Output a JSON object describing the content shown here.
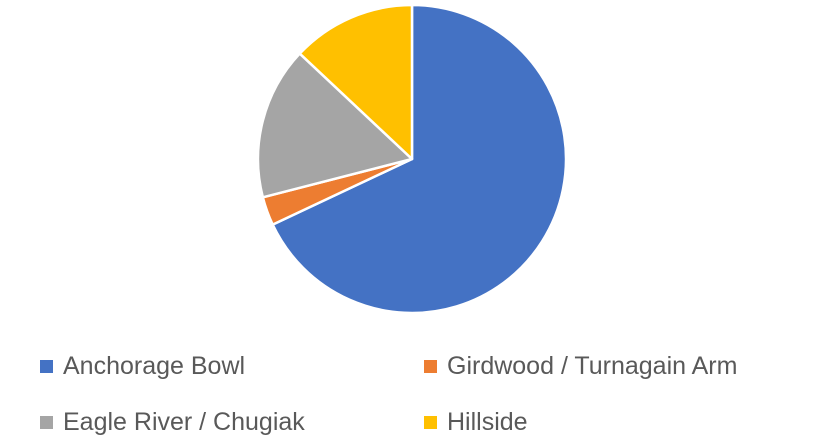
{
  "chart_data": {
    "type": "pie",
    "title": "",
    "categories": [
      "Anchorage Bowl",
      "Girdwood / Turnagain Arm",
      "Eagle River / Chugiak",
      "Hillside"
    ],
    "values": [
      68,
      3,
      16,
      13
    ],
    "colors": [
      "#4472C4",
      "#ED7D31",
      "#A5A5A5",
      "#FFC000"
    ],
    "start_angle_deg": 0,
    "direction": "clockwise",
    "legend_position": "bottom"
  }
}
